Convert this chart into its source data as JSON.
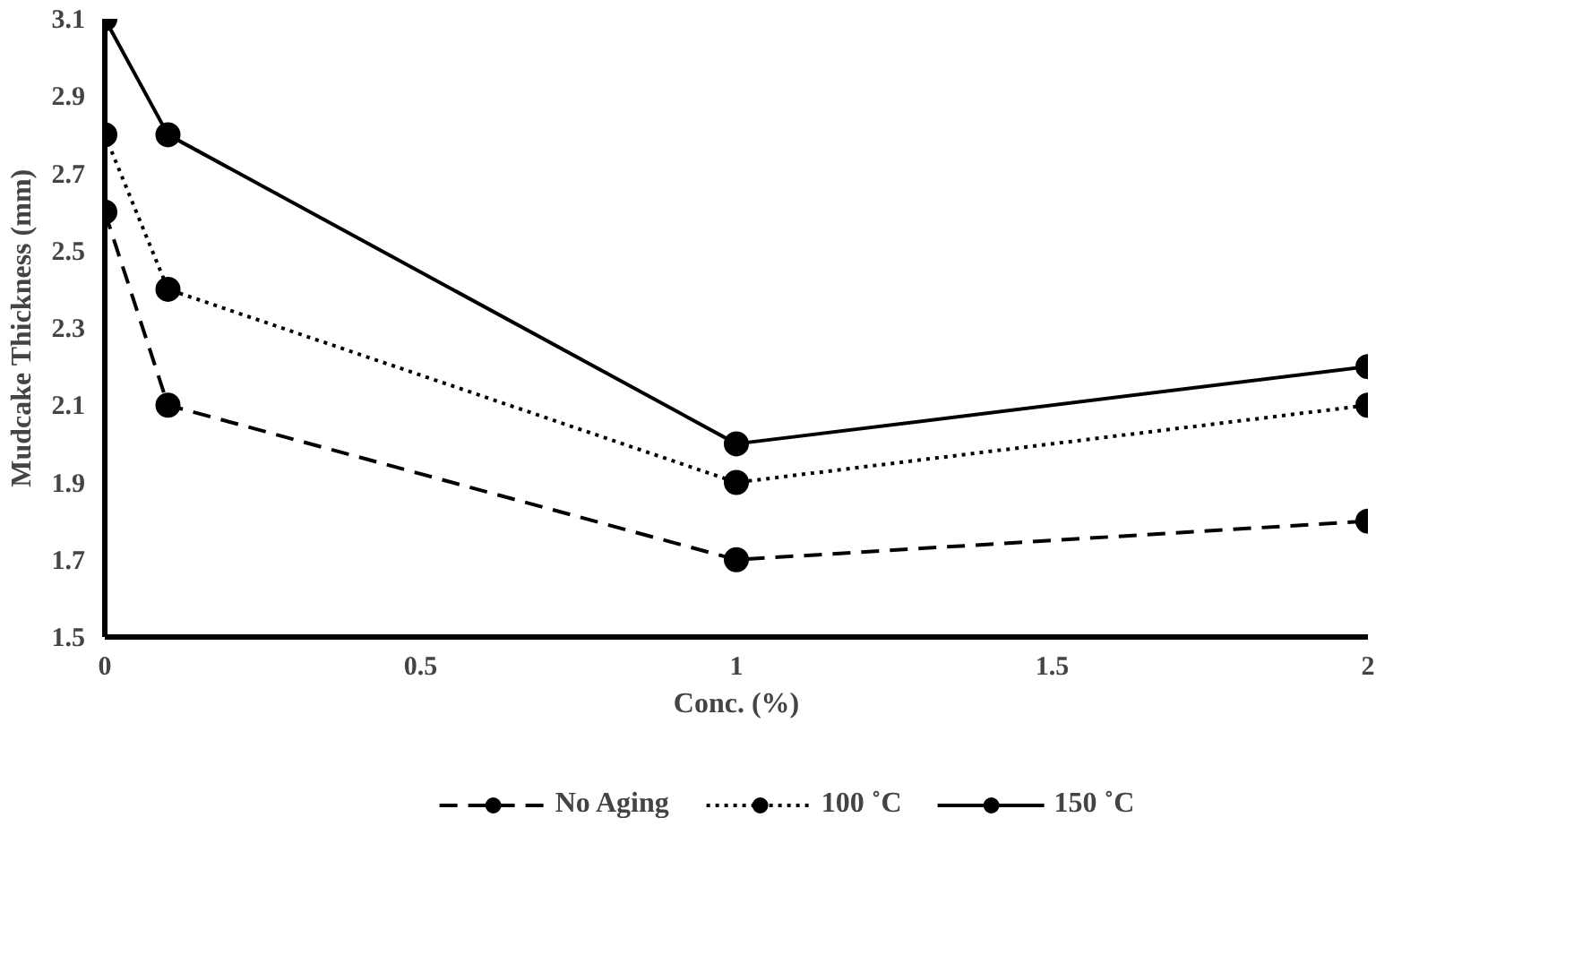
{
  "chart_data": {
    "type": "line",
    "xlabel": "Conc. (%)",
    "ylabel": "Mudcake Thickness (mm)",
    "x": [
      0,
      0.1,
      1,
      2
    ],
    "series": [
      {
        "name": "No Aging",
        "color": "#000000",
        "line_style": "dashed",
        "values": [
          2.6,
          2.1,
          1.7,
          1.8
        ]
      },
      {
        "name": "100 ˚C",
        "color": "#000000",
        "line_style": "dotted",
        "values": [
          2.8,
          2.4,
          1.9,
          2.1
        ]
      },
      {
        "name": "150 ˚C",
        "color": "#000000",
        "line_style": "solid",
        "values": [
          3.1,
          2.8,
          2.0,
          2.2
        ]
      }
    ],
    "xlim": [
      0,
      2
    ],
    "ylim": [
      1.5,
      3.1
    ],
    "xticks": [
      0,
      0.5,
      1,
      1.5,
      2
    ],
    "yticks": [
      1.5,
      1.7,
      1.9,
      2.1,
      2.3,
      2.5,
      2.7,
      2.9,
      3.1
    ],
    "grid": false,
    "legend": "bottom",
    "marker": "circle"
  }
}
